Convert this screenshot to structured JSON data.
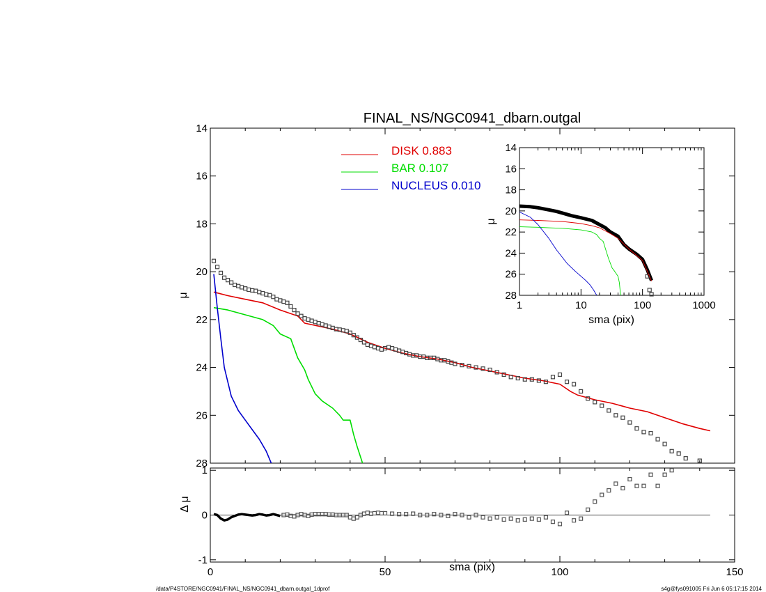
{
  "footer": {
    "left": "/data/P4STORE/NGC0941/FINAL_NS/NGC0941_dbarn.outgal_1dprof",
    "right": "s4g@fys091005  Fri Jun  6 05:17:15 2014"
  },
  "chart_data": [
    {
      "id": "main",
      "type": "line",
      "title": "FINAL_NS/NGC0941_dbarn.outgal",
      "xlabel": "",
      "ylabel": "μ",
      "xlim": [
        0,
        150
      ],
      "ylim": [
        14,
        28
      ],
      "y_inverted": true,
      "xticks": [
        0,
        50,
        100,
        150
      ],
      "yticks": [
        14,
        16,
        18,
        20,
        22,
        24,
        26,
        28
      ],
      "ytick_labels": [
        "14",
        "16",
        "18",
        "20",
        "22",
        "24",
        "26",
        "28"
      ],
      "grid": false,
      "legend": {
        "placement": "top-center",
        "entries": [
          {
            "name": "DISK",
            "value": "0.883",
            "color": "#e00000"
          },
          {
            "name": "BAR",
            "value": "0.107",
            "color": "#00dd00"
          },
          {
            "name": "NUCLEUS",
            "value": "0.010",
            "color": "#0000cc"
          }
        ]
      },
      "series": [
        {
          "name": "DISK",
          "color": "#e00000",
          "style": "line",
          "x": [
            1,
            5,
            10,
            15,
            20,
            25,
            27,
            35,
            40,
            45,
            50,
            55,
            60,
            65,
            70,
            75,
            80,
            85,
            90,
            95,
            100,
            103,
            105,
            110,
            115,
            120,
            125,
            130,
            135,
            140,
            143
          ],
          "y": [
            20.85,
            21.0,
            21.15,
            21.3,
            21.6,
            21.85,
            22.15,
            22.4,
            22.6,
            22.95,
            23.2,
            23.4,
            23.55,
            23.65,
            23.8,
            24.0,
            24.15,
            24.3,
            24.45,
            24.55,
            24.7,
            25.0,
            25.15,
            25.35,
            25.5,
            25.7,
            25.85,
            26.1,
            26.35,
            26.55,
            26.65
          ]
        },
        {
          "name": "BAR",
          "color": "#00dd00",
          "style": "line",
          "x": [
            1,
            5,
            10,
            15,
            18,
            20,
            23,
            25,
            27,
            28,
            30,
            32,
            35,
            37,
            38,
            40,
            41,
            42,
            44
          ],
          "y": [
            21.5,
            21.6,
            21.8,
            22.0,
            22.25,
            22.6,
            22.8,
            23.6,
            24.1,
            24.5,
            25.1,
            25.4,
            25.7,
            26.0,
            26.2,
            26.2,
            26.8,
            27.3,
            28.2
          ]
        },
        {
          "name": "NUCLEUS",
          "color": "#0000cc",
          "style": "line",
          "x": [
            1,
            2,
            3,
            4,
            6,
            8,
            10,
            12,
            14,
            16,
            18
          ],
          "y": [
            20.1,
            21.5,
            22.8,
            24.0,
            25.2,
            25.8,
            26.2,
            26.6,
            27.0,
            27.5,
            28.2
          ]
        },
        {
          "name": "",
          "color": "#444444",
          "style": "markers",
          "x": [
            1,
            2,
            3,
            4,
            5,
            6,
            7,
            8,
            9,
            10,
            11,
            12,
            13,
            14,
            15,
            16,
            17,
            18,
            19,
            20,
            21,
            22,
            23,
            24,
            25,
            26,
            27,
            28,
            29,
            30,
            31,
            32,
            33,
            34,
            35,
            36,
            37,
            38,
            39,
            40,
            41,
            42,
            43,
            44,
            45,
            46,
            47,
            48,
            49,
            50,
            51,
            52,
            53,
            54,
            55,
            56,
            57,
            58,
            59,
            60,
            61,
            62,
            63,
            64,
            65,
            66,
            67,
            68,
            69,
            70,
            72,
            74,
            76,
            78,
            80,
            82,
            84,
            86,
            88,
            90,
            92,
            94,
            96,
            98,
            100,
            102,
            104,
            106,
            108,
            110,
            112,
            114,
            116,
            118,
            120,
            122,
            124,
            126,
            128,
            130,
            132,
            134,
            136,
            140
          ],
          "y": [
            19.55,
            19.8,
            20.05,
            20.25,
            20.35,
            20.45,
            20.55,
            20.6,
            20.65,
            20.7,
            20.75,
            20.78,
            20.8,
            20.85,
            20.9,
            20.95,
            20.98,
            21.05,
            21.15,
            21.2,
            21.25,
            21.3,
            21.45,
            21.6,
            21.75,
            21.85,
            21.95,
            22.0,
            22.05,
            22.1,
            22.15,
            22.2,
            22.25,
            22.3,
            22.35,
            22.4,
            22.42,
            22.45,
            22.48,
            22.55,
            22.65,
            22.75,
            22.85,
            22.95,
            23.05,
            23.1,
            23.15,
            23.2,
            23.25,
            23.2,
            23.15,
            23.2,
            23.25,
            23.3,
            23.35,
            23.4,
            23.45,
            23.5,
            23.5,
            23.55,
            23.55,
            23.6,
            23.6,
            23.6,
            23.65,
            23.7,
            23.7,
            23.75,
            23.8,
            23.85,
            23.9,
            23.95,
            24.0,
            24.05,
            24.1,
            24.2,
            24.3,
            24.4,
            24.45,
            24.5,
            24.5,
            24.55,
            24.6,
            24.4,
            24.3,
            24.6,
            24.7,
            25.0,
            25.3,
            25.45,
            25.6,
            25.8,
            26.0,
            26.1,
            26.3,
            26.55,
            26.7,
            26.75,
            27.0,
            27.2,
            27.5,
            27.6,
            27.8,
            27.9
          ]
        }
      ]
    },
    {
      "id": "residual",
      "type": "scatter",
      "xlabel": "sma (pix)",
      "ylabel": "Δ μ",
      "xlim": [
        0,
        150
      ],
      "ylim": [
        -1.05,
        1.05
      ],
      "xticks": [
        0,
        50,
        100,
        150
      ],
      "yticks": [
        -1,
        0,
        1
      ],
      "ytick_labels": [
        "-1",
        "0",
        "1"
      ],
      "zero_line": true,
      "grid": false,
      "series": [
        {
          "name": "",
          "color": "#000000",
          "style": "thick-line",
          "x": [
            1,
            2,
            3,
            4,
            5,
            6,
            7,
            8,
            9,
            10,
            11,
            12,
            13,
            14,
            15,
            16,
            17,
            18,
            19,
            20
          ],
          "y": [
            0.02,
            0.0,
            -0.08,
            -0.12,
            -0.1,
            -0.05,
            -0.02,
            0.01,
            0.02,
            0.01,
            0.0,
            -0.01,
            0.0,
            0.02,
            0.01,
            -0.01,
            0.0,
            0.02,
            0.0,
            -0.02
          ]
        },
        {
          "name": "",
          "color": "#555555",
          "style": "markers",
          "x": [
            21,
            22,
            23,
            24,
            25,
            26,
            27,
            28,
            29,
            30,
            31,
            32,
            33,
            34,
            35,
            36,
            37,
            38,
            39,
            40,
            41,
            42,
            43,
            44,
            45,
            46,
            47,
            48,
            49,
            50,
            52,
            54,
            56,
            58,
            60,
            62,
            64,
            66,
            68,
            70,
            72,
            74,
            76,
            78,
            80,
            82,
            84,
            86,
            88,
            90,
            92,
            94,
            96,
            98,
            100,
            102,
            104,
            106,
            108,
            110,
            112,
            114,
            116,
            118,
            120,
            122,
            124,
            126,
            128,
            130,
            132
          ],
          "y": [
            0.0,
            0.01,
            -0.02,
            -0.03,
            0.0,
            0.02,
            0.0,
            -0.02,
            0.01,
            0.02,
            0.02,
            0.02,
            0.02,
            0.01,
            0.01,
            0.0,
            0.0,
            0.0,
            0.0,
            -0.05,
            -0.08,
            -0.05,
            0.0,
            0.03,
            0.05,
            0.03,
            0.04,
            0.05,
            0.04,
            0.04,
            0.03,
            0.02,
            0.02,
            0.03,
            0.0,
            0.0,
            0.02,
            0.0,
            -0.02,
            0.02,
            0.0,
            -0.05,
            0.0,
            -0.05,
            -0.08,
            -0.05,
            -0.1,
            -0.08,
            -0.12,
            -0.1,
            -0.08,
            -0.1,
            -0.05,
            -0.15,
            -0.2,
            0.05,
            -0.12,
            -0.08,
            0.12,
            0.3,
            0.45,
            0.55,
            0.7,
            0.6,
            0.8,
            0.65,
            0.65,
            0.9,
            0.65,
            0.9,
            1.0
          ]
        }
      ]
    },
    {
      "id": "inset",
      "type": "line",
      "xlabel": "sma (pix)",
      "ylabel": "μ",
      "xscale": "log",
      "xlim": [
        1,
        1000
      ],
      "ylim": [
        14,
        28
      ],
      "y_inverted": true,
      "xticks": [
        1,
        10,
        100,
        1000
      ],
      "xtick_labels": [
        "1",
        "10",
        "100",
        "1000"
      ],
      "yticks": [
        14,
        16,
        18,
        20,
        22,
        24,
        26,
        28
      ],
      "ytick_labels": [
        "14",
        "16",
        "18",
        "20",
        "22",
        "24",
        "26",
        "28"
      ],
      "grid": false,
      "series": [
        {
          "name": "",
          "color": "#000000",
          "style": "thick-line",
          "x": [
            1,
            1.5,
            2,
            3,
            4,
            5,
            7,
            10,
            15,
            20,
            25,
            30,
            40,
            50,
            60,
            80,
            100,
            120,
            140
          ],
          "y": [
            19.55,
            19.6,
            19.7,
            19.9,
            20.05,
            20.2,
            20.45,
            20.65,
            20.9,
            21.3,
            21.6,
            22.0,
            22.4,
            23.2,
            23.6,
            24.1,
            24.6,
            25.6,
            26.6
          ]
        },
        {
          "name": "",
          "color": "#444444",
          "style": "markers",
          "x": [
            120,
            130,
            140
          ],
          "y": [
            26.2,
            27.5,
            27.9
          ]
        },
        {
          "name": "DISK",
          "color": "#e00000",
          "style": "line",
          "x": [
            1,
            2,
            3,
            5,
            10,
            15,
            20,
            30,
            40,
            60,
            100,
            140
          ],
          "y": [
            20.85,
            20.9,
            20.95,
            21.0,
            21.2,
            21.4,
            21.6,
            22.15,
            22.6,
            23.6,
            24.7,
            26.65
          ]
        },
        {
          "name": "BAR",
          "color": "#00dd00",
          "style": "line",
          "x": [
            1,
            2,
            3,
            5,
            10,
            15,
            18,
            20,
            23,
            25,
            28,
            32,
            35,
            38,
            40,
            42,
            44
          ],
          "y": [
            21.5,
            21.55,
            21.6,
            21.65,
            21.8,
            22.0,
            22.25,
            22.6,
            22.9,
            23.6,
            24.5,
            25.4,
            25.7,
            26.0,
            26.2,
            26.8,
            28.0
          ]
        },
        {
          "name": "NUCLEUS",
          "color": "#0000cc",
          "style": "line",
          "x": [
            1,
            1.5,
            2,
            3,
            4,
            6,
            8,
            10,
            12,
            14,
            16,
            18
          ],
          "y": [
            20.1,
            20.6,
            21.3,
            22.6,
            23.7,
            25.0,
            25.7,
            26.2,
            26.6,
            27.0,
            27.5,
            28.0
          ]
        }
      ]
    }
  ]
}
